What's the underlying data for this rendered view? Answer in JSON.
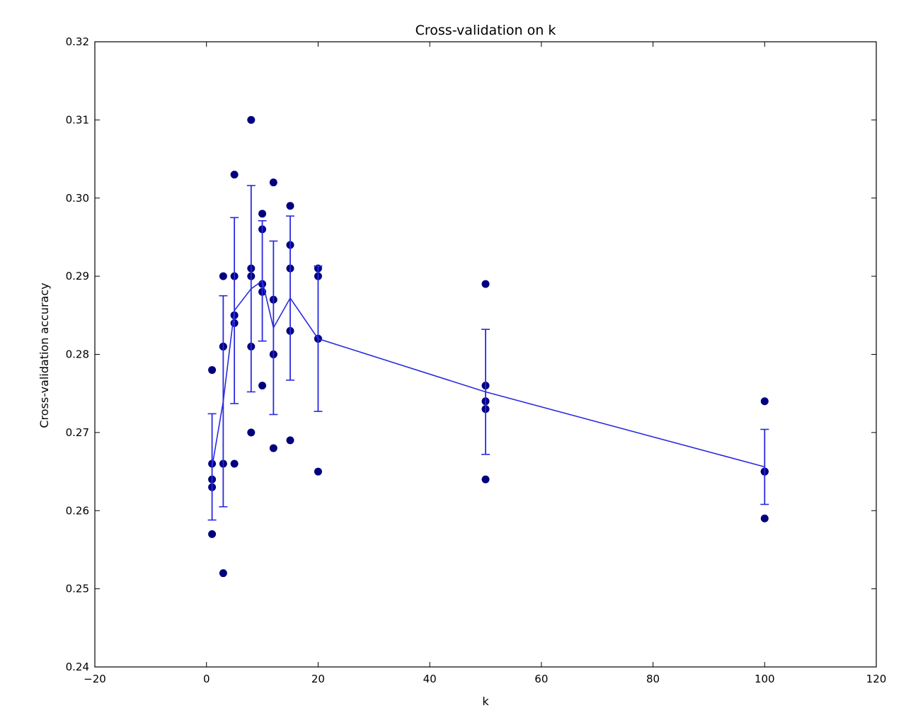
{
  "chart_data": {
    "type": "scatter",
    "title": "Cross-validation on k",
    "xlabel": "k",
    "ylabel": "Cross-validation accuracy",
    "xlim": [
      -20,
      120
    ],
    "ylim": [
      0.24,
      0.32
    ],
    "xticks": [
      -20,
      0,
      20,
      40,
      60,
      80,
      100,
      120
    ],
    "xtick_labels": [
      "−20",
      "0",
      "20",
      "40",
      "60",
      "80",
      "100",
      "120"
    ],
    "yticks": [
      0.24,
      0.25,
      0.26,
      0.27,
      0.28,
      0.29,
      0.3,
      0.31,
      0.32
    ],
    "ytick_labels": [
      "0.24",
      "0.25",
      "0.26",
      "0.27",
      "0.28",
      "0.29",
      "0.30",
      "0.31",
      "0.32"
    ],
    "grid": false,
    "colors": {
      "points": "#00007f",
      "line": "#2a2ae0",
      "axes": "#000000"
    },
    "points": [
      {
        "k": 1,
        "accuracies": [
          0.263,
          0.257,
          0.264,
          0.278,
          0.266
        ]
      },
      {
        "k": 3,
        "accuracies": [
          0.252,
          0.281,
          0.29,
          0.281,
          0.266
        ]
      },
      {
        "k": 5,
        "accuracies": [
          0.266,
          0.285,
          0.303,
          0.29,
          0.284
        ]
      },
      {
        "k": 8,
        "accuracies": [
          0.27,
          0.291,
          0.31,
          0.29,
          0.281
        ]
      },
      {
        "k": 10,
        "accuracies": [
          0.276,
          0.289,
          0.296,
          0.298,
          0.288
        ]
      },
      {
        "k": 12,
        "accuracies": [
          0.268,
          0.28,
          0.302,
          0.287,
          0.28
        ]
      },
      {
        "k": 15,
        "accuracies": [
          0.269,
          0.283,
          0.294,
          0.299,
          0.291
        ]
      },
      {
        "k": 20,
        "accuracies": [
          0.265,
          0.282,
          0.291,
          0.29,
          0.282
        ]
      },
      {
        "k": 50,
        "accuracies": [
          0.264,
          0.276,
          0.274,
          0.273,
          0.289
        ]
      },
      {
        "k": 100,
        "accuracies": [
          0.259,
          0.265,
          0.274,
          0.265,
          0.265
        ]
      }
    ],
    "series": [
      {
        "type": "errorbar",
        "x": [
          1,
          3,
          5,
          8,
          10,
          12,
          15,
          20,
          50,
          100
        ],
        "mean": [
          0.2656,
          0.274,
          0.2856,
          0.2884,
          0.2894,
          0.2834,
          0.2872,
          0.282,
          0.2752,
          0.2656
        ],
        "std": [
          0.0068,
          0.0135,
          0.0119,
          0.0132,
          0.0077,
          0.0111,
          0.0105,
          0.0093,
          0.008,
          0.0048
        ]
      }
    ]
  }
}
